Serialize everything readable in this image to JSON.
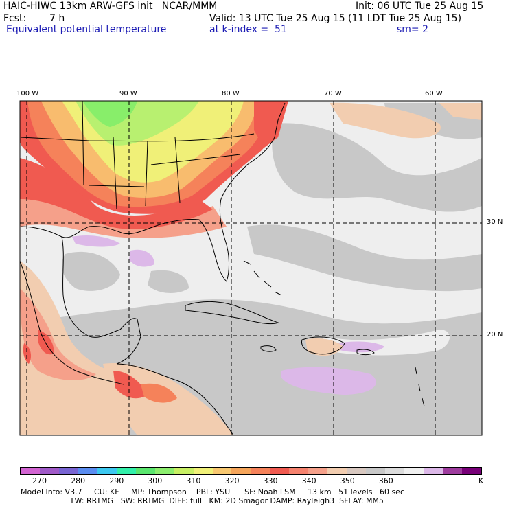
{
  "header": {
    "title_left": "HAIC-HIWC 13km ARW-GFS init   NCAR/MMM",
    "init": "Init: 06 UTC Tue 25 Aug 15",
    "fcst_label": "Fcst:",
    "fcst_value": "7 h",
    "valid": "Valid: 13 UTC Tue 25 Aug 15 (11 LDT Tue 25 Aug 15)",
    "field": "Equivalent potential temperature",
    "level": "at k-index =  51",
    "smooth": "sm= 2"
  },
  "map": {
    "lon_labels": [
      "100 W",
      "90 W",
      "80 W",
      "70 W",
      "60 W"
    ],
    "lat_labels": [
      "30 N",
      "20 N"
    ],
    "colors": {
      "ocean_pale": "#eeeeee",
      "gray": "#c8c8c8",
      "peach": "#f2cdb0",
      "salmon": "#f5a08a",
      "red": "#f05a50",
      "orange_red": "#f5825a",
      "orange": "#f8bc6e",
      "yellow": "#f0f078",
      "lime": "#b8f070",
      "green": "#88ee6a",
      "lavender": "#dcb8e8",
      "purple": "#9e3c9e"
    }
  },
  "colorbar": {
    "colors": [
      "#d264d2",
      "#a05ac8",
      "#7864d2",
      "#5a8cf0",
      "#3cc8f0",
      "#32f0aa",
      "#5ae66e",
      "#8cee6e",
      "#c8f064",
      "#f0f078",
      "#f8c870",
      "#f5a55a",
      "#f5825a",
      "#f05a50",
      "#f5826e",
      "#f5a08a",
      "#f2cdb0",
      "#d8c8c0",
      "#c8c8c8",
      "#dcdcdc",
      "#f0f0f0",
      "#dcb8e8",
      "#9e3c9e",
      "#780078"
    ],
    "tick_labels": [
      "270",
      "280",
      "290",
      "300",
      "310",
      "320",
      "330",
      "340",
      "350",
      "360"
    ],
    "unit": "K"
  },
  "footer": {
    "line1": "Model Info: V3.7     CU: KF     MP: Thompson    PBL: YSU      SF: Noah LSM     13 km   51 levels   60 sec",
    "line2": "                     LW: RRTMG   SW: RRTMG  DIFF: full   KM: 2D Smagor DAMP: Rayleigh3  SFLAY: MM5"
  }
}
